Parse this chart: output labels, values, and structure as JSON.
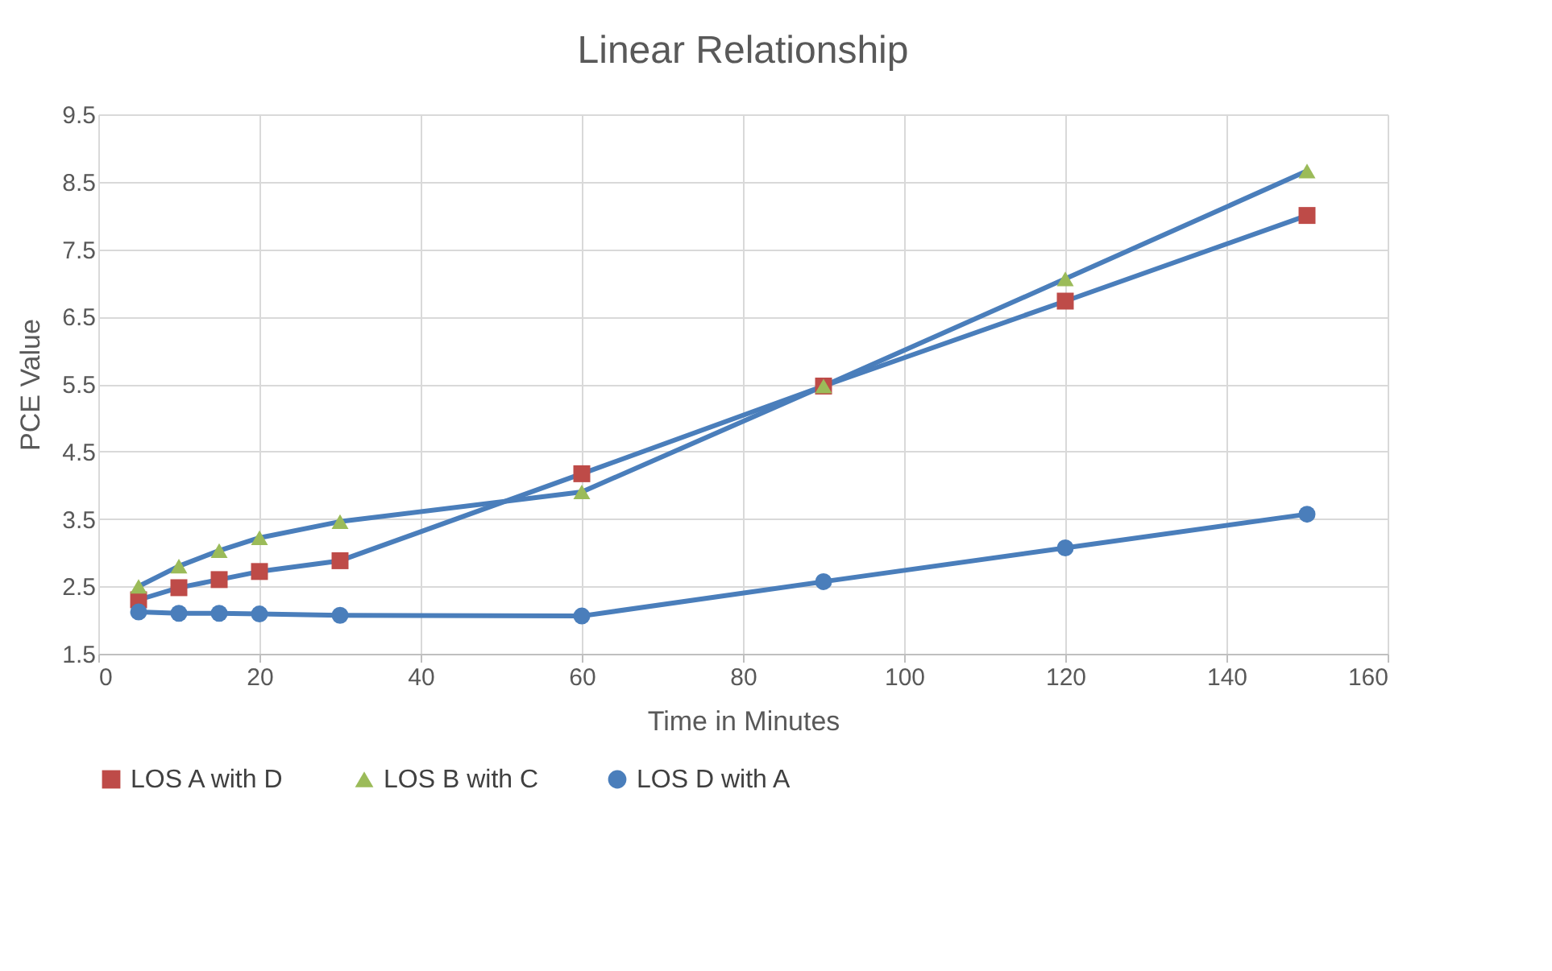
{
  "chart_data": {
    "type": "line",
    "title": "Linear Relationship",
    "xlabel": "Time in Minutes",
    "ylabel": "PCE Value",
    "x": [
      5,
      10,
      15,
      20,
      30,
      60,
      90,
      120,
      150
    ],
    "series": [
      {
        "name": "LOS A with D",
        "color": "#be4b48",
        "marker": "square",
        "values": [
          2.3,
          2.48,
          2.6,
          2.72,
          2.88,
          4.17,
          5.47,
          6.73,
          8.0
        ]
      },
      {
        "name": "LOS B with C",
        "color": "#9bbb59",
        "marker": "triangle",
        "values": [
          2.5,
          2.8,
          3.03,
          3.22,
          3.46,
          3.9,
          5.47,
          7.06,
          8.66
        ]
      },
      {
        "name": "LOS D with A",
        "color": "#4a7ebb",
        "marker": "circle",
        "values": [
          2.12,
          2.1,
          2.1,
          2.09,
          2.07,
          2.06,
          2.57,
          3.07,
          3.57
        ]
      }
    ],
    "xlim": [
      0,
      160
    ],
    "xticks": [
      0,
      20,
      40,
      60,
      80,
      100,
      120,
      140,
      160
    ],
    "ylim": [
      1.5,
      9.5
    ],
    "yticks": [
      1.5,
      2.5,
      3.5,
      4.5,
      5.5,
      6.5,
      7.5,
      8.5,
      9.5
    ],
    "grid": true,
    "legend": "bottom",
    "line_style": "solid"
  }
}
